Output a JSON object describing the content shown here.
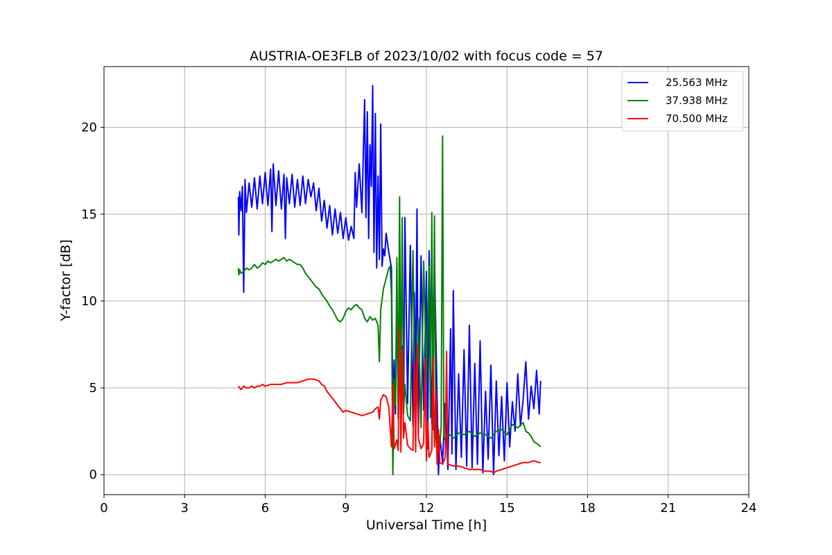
{
  "chart_data": {
    "type": "line",
    "title": "AUSTRIA-OE3FLB of 2023/10/02 with focus code = 57",
    "xlabel": "Universal Time [h]",
    "ylabel": "Y-factor [dB]",
    "xlim": [
      0,
      24
    ],
    "ylim": [
      -1.15,
      23.5
    ],
    "xticks": [
      0,
      3,
      6,
      9,
      12,
      15,
      18,
      21,
      24
    ],
    "yticks": [
      0,
      5,
      10,
      15,
      20
    ],
    "grid": true,
    "legend_position": "top-right",
    "series": [
      {
        "name": "25.563 MHz",
        "color": "#0000ff",
        "x": [
          5.0,
          5.02,
          5.05,
          5.1,
          5.15,
          5.2,
          5.25,
          5.3,
          5.4,
          5.5,
          5.6,
          5.7,
          5.8,
          5.9,
          6.0,
          6.1,
          6.2,
          6.25,
          6.3,
          6.4,
          6.5,
          6.6,
          6.7,
          6.75,
          6.8,
          6.9,
          7.0,
          7.1,
          7.2,
          7.3,
          7.4,
          7.5,
          7.6,
          7.7,
          7.8,
          7.9,
          8.0,
          8.1,
          8.2,
          8.3,
          8.4,
          8.5,
          8.6,
          8.7,
          8.8,
          8.9,
          9.0,
          9.1,
          9.2,
          9.3,
          9.35,
          9.4,
          9.5,
          9.6,
          9.7,
          9.75,
          9.8,
          9.85,
          9.9,
          9.95,
          10.0,
          10.05,
          10.1,
          10.15,
          10.2,
          10.25,
          10.3,
          10.35,
          10.4,
          10.45,
          10.5,
          10.6,
          10.7,
          10.75,
          10.8,
          10.85,
          10.9,
          10.95,
          11.0,
          11.05,
          11.1,
          11.15,
          11.2,
          11.3,
          11.4,
          11.5,
          11.55,
          11.6,
          11.65,
          11.7,
          11.8,
          11.9,
          12.0,
          12.05,
          12.1,
          12.2,
          12.3,
          12.4,
          12.45,
          12.5,
          12.6,
          12.7,
          12.8,
          12.9,
          12.95,
          13.0,
          13.1,
          13.2,
          13.3,
          13.4,
          13.5,
          13.6,
          13.7,
          13.8,
          13.9,
          14.0,
          14.1,
          14.2,
          14.3,
          14.4,
          14.5,
          14.6,
          14.7,
          14.8,
          14.9,
          15.0,
          15.1,
          15.2,
          15.3,
          15.4,
          15.5,
          15.6,
          15.7,
          15.8,
          15.9,
          16.0,
          16.1,
          16.2,
          16.25
        ],
        "y": [
          16.0,
          13.8,
          16.3,
          15.2,
          16.6,
          10.5,
          17.0,
          15.1,
          16.8,
          15.4,
          17.1,
          15.3,
          17.2,
          15.6,
          17.4,
          15.5,
          17.6,
          14.0,
          17.9,
          15.5,
          17.5,
          15.3,
          17.3,
          13.6,
          17.1,
          15.6,
          17.3,
          15.4,
          17.0,
          15.5,
          17.2,
          15.6,
          17.0,
          16.0,
          16.8,
          15.2,
          16.5,
          14.6,
          15.8,
          14.2,
          15.5,
          13.8,
          15.3,
          13.9,
          15.1,
          13.6,
          14.8,
          13.5,
          14.3,
          13.6,
          17.4,
          15.4,
          17.9,
          15.1,
          21.6,
          14.8,
          20.9,
          13.6,
          19.0,
          16.6,
          22.4,
          12.8,
          20.8,
          11.9,
          17.2,
          12.4,
          20.2,
          12.0,
          13.0,
          12.6,
          13.9,
          12.8,
          11.9,
          3.8,
          6.6,
          3.5,
          10.4,
          4.2,
          12.9,
          5.1,
          7.4,
          3.5,
          14.8,
          4.1,
          13.2,
          2.8,
          10.5,
          4.8,
          15.3,
          2.3,
          12.6,
          3.7,
          11.7,
          1.5,
          12.9,
          2.9,
          12.4,
          4.2,
          0.0,
          2.2,
          0.7,
          4.1,
          0.3,
          8.4,
          1.2,
          10.6,
          0.3,
          5.8,
          1.0,
          7.2,
          0.5,
          8.6,
          0.4,
          6.4,
          0.6,
          7.7,
          0.1,
          4.8,
          0.9,
          6.3,
          0.0,
          5.4,
          1.1,
          4.5,
          0.8,
          5.3,
          1.6,
          4.2,
          2.5,
          5.8,
          2.8,
          4.3,
          6.5,
          3.2,
          5.1,
          3.8,
          6.0,
          3.5,
          5.4
        ]
      },
      {
        "name": "37.938 MHz",
        "color": "#008000",
        "x": [
          5.0,
          5.02,
          5.05,
          5.1,
          5.2,
          5.3,
          5.4,
          5.5,
          5.6,
          5.7,
          5.8,
          5.9,
          6.0,
          6.1,
          6.2,
          6.3,
          6.4,
          6.5,
          6.6,
          6.7,
          6.8,
          6.9,
          7.0,
          7.1,
          7.2,
          7.3,
          7.4,
          7.5,
          7.6,
          7.7,
          7.8,
          7.9,
          8.0,
          8.1,
          8.2,
          8.3,
          8.4,
          8.5,
          8.6,
          8.7,
          8.8,
          8.9,
          9.0,
          9.1,
          9.2,
          9.3,
          9.4,
          9.5,
          9.6,
          9.7,
          9.8,
          9.9,
          10.0,
          10.1,
          10.2,
          10.25,
          10.3,
          10.4,
          10.5,
          10.6,
          10.65,
          10.7,
          10.75,
          10.8,
          10.85,
          10.9,
          10.95,
          11.0,
          11.05,
          11.1,
          11.15,
          11.2,
          11.3,
          11.4,
          11.5,
          11.6,
          11.7,
          11.8,
          11.9,
          12.0,
          12.1,
          12.15,
          12.2,
          12.25,
          12.3,
          12.35,
          12.4,
          12.45,
          12.5,
          12.55,
          12.6,
          12.65,
          12.7,
          12.8,
          13.0,
          13.2,
          13.4,
          13.6,
          13.8,
          14.0,
          14.2,
          14.4,
          14.6,
          14.8,
          15.0,
          15.2,
          15.4,
          15.6,
          15.7,
          15.8,
          15.9,
          16.0,
          16.1,
          16.2,
          16.25
        ],
        "y": [
          11.9,
          11.5,
          11.8,
          11.6,
          11.7,
          11.9,
          11.8,
          11.9,
          12.1,
          11.9,
          12.0,
          12.2,
          12.1,
          12.3,
          12.2,
          12.3,
          12.4,
          12.3,
          12.4,
          12.5,
          12.3,
          12.4,
          12.3,
          12.2,
          12.1,
          12.1,
          11.9,
          11.6,
          11.4,
          11.2,
          11.0,
          10.8,
          10.7,
          10.4,
          10.2,
          10.0,
          9.7,
          9.5,
          9.2,
          8.9,
          8.8,
          9.0,
          9.4,
          9.6,
          9.5,
          9.7,
          9.8,
          9.6,
          9.5,
          9.0,
          8.8,
          9.1,
          8.9,
          9.0,
          8.6,
          6.5,
          9.5,
          10.7,
          11.3,
          11.9,
          12.0,
          10.4,
          0.0,
          5.5,
          4.0,
          12.5,
          3.2,
          16.0,
          4.3,
          14.8,
          3.6,
          5.2,
          3.4,
          3.1,
          12.9,
          2.6,
          9.0,
          2.7,
          12.3,
          5.4,
          12.0,
          3.3,
          15.1,
          2.6,
          14.9,
          2.4,
          0.9,
          2.3,
          1.7,
          2.8,
          19.5,
          2.2,
          2.0,
          2.4,
          2.1,
          2.4,
          2.3,
          2.5,
          2.2,
          2.4,
          2.3,
          2.1,
          2.5,
          2.6,
          2.3,
          2.9,
          2.7,
          3.0,
          2.5,
          2.4,
          2.2,
          1.9,
          1.8,
          1.7,
          1.6
        ]
      },
      {
        "name": "70.500 MHz",
        "color": "#ff0000",
        "x": [
          5.0,
          5.1,
          5.2,
          5.3,
          5.4,
          5.5,
          5.6,
          5.7,
          5.8,
          5.9,
          6.0,
          6.2,
          6.4,
          6.6,
          6.8,
          7.0,
          7.2,
          7.4,
          7.6,
          7.8,
          8.0,
          8.1,
          8.2,
          8.3,
          8.4,
          8.5,
          8.6,
          8.7,
          8.8,
          8.9,
          9.0,
          9.2,
          9.4,
          9.6,
          9.8,
          10.0,
          10.1,
          10.2,
          10.25,
          10.3,
          10.4,
          10.5,
          10.6,
          10.7,
          10.75,
          10.8,
          10.9,
          10.95,
          11.0,
          11.05,
          11.1,
          11.15,
          11.2,
          11.3,
          11.4,
          11.5,
          11.55,
          11.6,
          11.65,
          11.7,
          11.8,
          11.9,
          11.95,
          12.0,
          12.05,
          12.1,
          12.2,
          12.25,
          12.3,
          12.35,
          12.4,
          12.45,
          12.5,
          12.6,
          12.7,
          12.75,
          12.8,
          13.0,
          13.2,
          13.4,
          13.6,
          13.8,
          14.0,
          14.2,
          14.4,
          14.5,
          14.6,
          14.8,
          15.0,
          15.2,
          15.4,
          15.6,
          15.8,
          16.0,
          16.2,
          16.25
        ],
        "y": [
          5.1,
          4.9,
          5.1,
          5.0,
          5.0,
          5.1,
          5.0,
          5.1,
          5.1,
          5.2,
          5.1,
          5.2,
          5.2,
          5.2,
          5.3,
          5.3,
          5.3,
          5.4,
          5.5,
          5.5,
          5.4,
          5.2,
          5.1,
          4.8,
          4.6,
          4.4,
          4.2,
          4.0,
          3.8,
          3.6,
          3.7,
          3.6,
          3.5,
          3.4,
          3.5,
          3.6,
          3.8,
          3.9,
          3.2,
          4.3,
          4.6,
          4.5,
          3.9,
          1.6,
          5.2,
          1.5,
          2.0,
          1.4,
          8.5,
          1.3,
          7.2,
          2.1,
          3.0,
          1.7,
          1.5,
          1.4,
          6.5,
          1.3,
          7.5,
          2.1,
          1.5,
          1.8,
          6.7,
          0.8,
          3.1,
          1.0,
          1.4,
          6.8,
          1.6,
          4.8,
          0.6,
          2.6,
          0.7,
          0.6,
          1.0,
          7.1,
          0.6,
          0.5,
          0.5,
          0.4,
          0.3,
          0.3,
          0.3,
          0.2,
          0.2,
          0.1,
          0.2,
          0.3,
          0.4,
          0.5,
          0.6,
          0.7,
          0.7,
          0.8,
          0.7,
          0.7
        ]
      }
    ]
  }
}
